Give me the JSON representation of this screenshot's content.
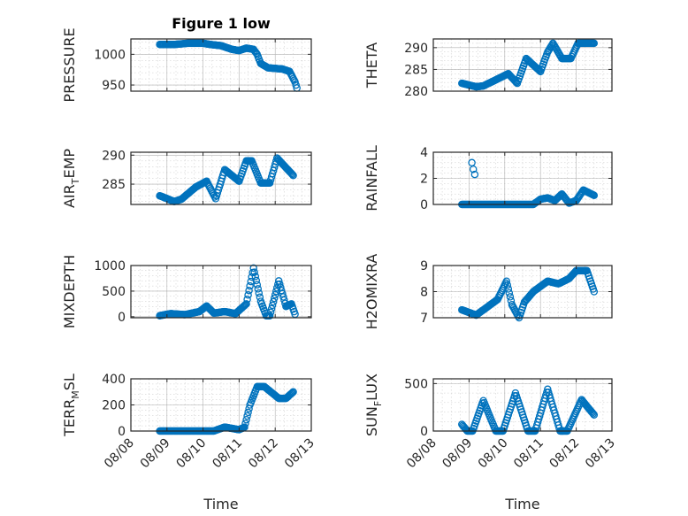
{
  "chart_data": [
    {
      "id": "pressure",
      "type": "scatter",
      "title": "Figure 1 low",
      "ylabel_main": "PRESSURE",
      "ylabel_sub": "",
      "ylabel_tail": "",
      "ylim": [
        940,
        1025
      ],
      "yticks": [
        950,
        1000
      ],
      "xlim": [
        0,
        5
      ],
      "xticks_shown": false,
      "color": "#0072BD",
      "anchors": [
        [
          0.8,
          1016
        ],
        [
          1.2,
          1016
        ],
        [
          1.6,
          1018
        ],
        [
          2.0,
          1018
        ],
        [
          2.2,
          1016
        ],
        [
          2.5,
          1014
        ],
        [
          2.8,
          1008
        ],
        [
          3.0,
          1006
        ],
        [
          3.2,
          1010
        ],
        [
          3.4,
          1008
        ],
        [
          3.5,
          1000
        ],
        [
          3.6,
          985
        ],
        [
          3.8,
          978
        ],
        [
          4.2,
          976
        ],
        [
          4.4,
          972
        ],
        [
          4.55,
          955
        ],
        [
          4.6,
          945
        ]
      ]
    },
    {
      "id": "theta",
      "type": "scatter",
      "title": "",
      "ylabel_main": "THETA",
      "ylabel_sub": "",
      "ylabel_tail": "",
      "ylim": [
        280,
        292
      ],
      "yticks": [
        280,
        285,
        290
      ],
      "xlim": [
        0,
        5
      ],
      "xticks_shown": false,
      "color": "#0072BD",
      "anchors": [
        [
          0.8,
          281.8
        ],
        [
          1.2,
          281
        ],
        [
          1.4,
          281.2
        ],
        [
          1.8,
          282.8
        ],
        [
          2.1,
          284
        ],
        [
          2.35,
          281.8
        ],
        [
          2.6,
          287.5
        ],
        [
          3.0,
          284.5
        ],
        [
          3.2,
          289
        ],
        [
          3.35,
          291
        ],
        [
          3.6,
          287.5
        ],
        [
          3.85,
          287.5
        ],
        [
          4.05,
          291
        ],
        [
          4.5,
          291
        ]
      ]
    },
    {
      "id": "air_temp",
      "type": "scatter",
      "title": "",
      "ylabel_main": "AIR",
      "ylabel_sub": "T",
      "ylabel_tail": "EMP",
      "ylim": [
        281.5,
        290.5
      ],
      "yticks": [
        285,
        290
      ],
      "xlim": [
        0,
        5
      ],
      "xticks_shown": false,
      "color": "#0072BD",
      "anchors": [
        [
          0.8,
          283
        ],
        [
          1.2,
          282
        ],
        [
          1.4,
          282.4
        ],
        [
          1.8,
          284.5
        ],
        [
          2.1,
          285.5
        ],
        [
          2.35,
          282.5
        ],
        [
          2.6,
          287.5
        ],
        [
          3.0,
          285.5
        ],
        [
          3.2,
          289
        ],
        [
          3.35,
          289
        ],
        [
          3.6,
          285.2
        ],
        [
          3.85,
          285.2
        ],
        [
          4.05,
          289.5
        ],
        [
          4.5,
          286.5
        ]
      ]
    },
    {
      "id": "rainfall",
      "type": "scatter",
      "title": "",
      "ylabel_main": "RAINFALL",
      "ylabel_sub": "",
      "ylabel_tail": "",
      "ylim": [
        0,
        4
      ],
      "yticks": [
        0,
        2,
        4
      ],
      "xlim": [
        0,
        5
      ],
      "xticks_shown": false,
      "color": "#0072BD",
      "anchors": [
        [
          0.8,
          0
        ],
        [
          2.8,
          0
        ],
        [
          3.0,
          0.4
        ],
        [
          3.2,
          0.5
        ],
        [
          3.4,
          0.3
        ],
        [
          3.6,
          0.8
        ],
        [
          3.8,
          0.1
        ],
        [
          4.0,
          0.3
        ],
        [
          4.2,
          1.1
        ],
        [
          4.5,
          0.7
        ]
      ],
      "extra_points": [
        [
          1.08,
          3.2
        ],
        [
          1.12,
          2.7
        ],
        [
          1.16,
          2.3
        ]
      ]
    },
    {
      "id": "mixdepth",
      "type": "scatter",
      "title": "",
      "ylabel_main": "MIXDEPTH",
      "ylabel_sub": "",
      "ylabel_tail": "",
      "ylim": [
        -20,
        1000
      ],
      "yticks": [
        0,
        500,
        1000
      ],
      "xlim": [
        0,
        5
      ],
      "xticks_shown": false,
      "color": "#0072BD",
      "anchors": [
        [
          0.8,
          20
        ],
        [
          1.1,
          60
        ],
        [
          1.5,
          40
        ],
        [
          1.9,
          100
        ],
        [
          2.1,
          210
        ],
        [
          2.3,
          70
        ],
        [
          2.6,
          100
        ],
        [
          2.9,
          60
        ],
        [
          3.2,
          250
        ],
        [
          3.4,
          950
        ],
        [
          3.6,
          300
        ],
        [
          3.75,
          20
        ],
        [
          3.85,
          20
        ],
        [
          4.1,
          700
        ],
        [
          4.3,
          200
        ],
        [
          4.45,
          250
        ],
        [
          4.55,
          50
        ]
      ]
    },
    {
      "id": "h2omixra",
      "type": "scatter",
      "title": "",
      "ylabel_main": "H2OMIXRA",
      "ylabel_sub": "",
      "ylabel_tail": "",
      "ylim": [
        7,
        9
      ],
      "yticks": [
        7,
        8,
        9
      ],
      "xlim": [
        0,
        5
      ],
      "xticks_shown": false,
      "color": "#0072BD",
      "anchors": [
        [
          0.8,
          7.3
        ],
        [
          1.0,
          7.2
        ],
        [
          1.2,
          7.1
        ],
        [
          1.5,
          7.4
        ],
        [
          1.8,
          7.7
        ],
        [
          2.05,
          8.4
        ],
        [
          2.2,
          7.5
        ],
        [
          2.4,
          7.0
        ],
        [
          2.55,
          7.6
        ],
        [
          2.8,
          8.0
        ],
        [
          3.0,
          8.2
        ],
        [
          3.2,
          8.4
        ],
        [
          3.5,
          8.3
        ],
        [
          3.8,
          8.5
        ],
        [
          4.0,
          8.8
        ],
        [
          4.3,
          8.8
        ],
        [
          4.5,
          8.0
        ]
      ]
    },
    {
      "id": "terr_msl",
      "type": "scatter",
      "title": "",
      "ylabel_main": "TERR",
      "ylabel_sub": "M",
      "ylabel_tail": "SL",
      "ylim": [
        0,
        400
      ],
      "yticks": [
        0,
        200,
        400
      ],
      "xlim": [
        0,
        5
      ],
      "xticks_shown": true,
      "color": "#0072BD",
      "anchors": [
        [
          0.8,
          0
        ],
        [
          2.3,
          0
        ],
        [
          2.6,
          30
        ],
        [
          2.8,
          20
        ],
        [
          3.0,
          10
        ],
        [
          3.15,
          30
        ],
        [
          3.3,
          200
        ],
        [
          3.5,
          340
        ],
        [
          3.7,
          340
        ],
        [
          4.1,
          250
        ],
        [
          4.3,
          250
        ],
        [
          4.5,
          300
        ]
      ]
    },
    {
      "id": "sun_flux",
      "type": "scatter",
      "title": "",
      "ylabel_main": "SUN",
      "ylabel_sub": "F",
      "ylabel_tail": "LUX",
      "ylim": [
        0,
        550
      ],
      "yticks": [
        0,
        500
      ],
      "xlim": [
        0,
        5
      ],
      "xticks_shown": true,
      "color": "#0072BD",
      "anchors": [
        [
          0.8,
          70
        ],
        [
          0.95,
          0
        ],
        [
          1.1,
          0
        ],
        [
          1.4,
          320
        ],
        [
          1.75,
          0
        ],
        [
          1.95,
          0
        ],
        [
          2.3,
          400
        ],
        [
          2.65,
          0
        ],
        [
          2.85,
          0
        ],
        [
          3.2,
          440
        ],
        [
          3.55,
          0
        ],
        [
          3.75,
          0
        ],
        [
          4.15,
          330
        ],
        [
          4.5,
          170
        ]
      ]
    }
  ],
  "x_tick_labels": [
    "08/08",
    "08/09",
    "08/10",
    "08/11",
    "08/12",
    "08/13"
  ],
  "x_axis_label": "Time"
}
